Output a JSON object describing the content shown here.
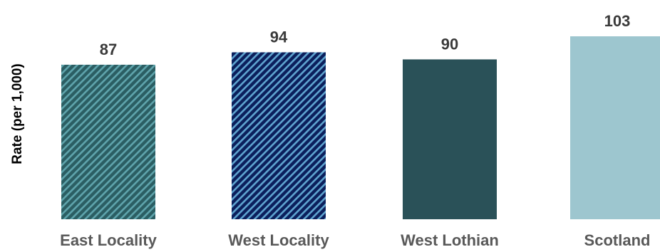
{
  "chart_data": {
    "type": "bar",
    "title": "",
    "xlabel": "",
    "ylabel": "Rate (per 1,000)",
    "categories": [
      "East Locality",
      "West Locality",
      "West Lothian",
      "Scotland"
    ],
    "values": [
      87,
      94,
      90,
      103
    ],
    "value_labels": [
      "87",
      "94",
      "90",
      "103"
    ],
    "ylim": [
      0,
      103
    ],
    "grid": false,
    "legend": "none",
    "bar_styles": [
      {
        "fill": "#2b5e63",
        "pattern": "diagonal-stripes",
        "stripe_color": "#5fa4ac"
      },
      {
        "fill": "#0b1f5c",
        "pattern": "diagonal-stripes",
        "stripe_color": "#5fa4d0"
      },
      {
        "fill": "#2a5158",
        "pattern": "none"
      },
      {
        "fill": "#9dc6cf",
        "pattern": "none"
      }
    ]
  }
}
